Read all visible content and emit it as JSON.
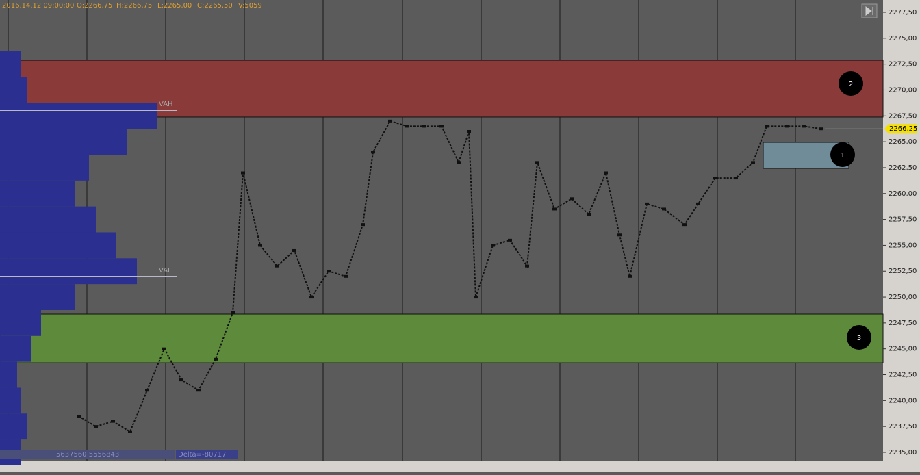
{
  "header": {
    "date": "2016.14.12 09:00:00",
    "open": "O:2266,75",
    "high": "H:2266,75",
    "low": "L:2265,00",
    "close": "C:2265,50",
    "volume": "V:5059"
  },
  "chart_data": {
    "type": "line",
    "ylim": [
      2234.14,
      2278.69
    ],
    "xlim": [
      0,
      129
    ],
    "yticks": [
      {
        "value": 2235,
        "label": "2235,00"
      },
      {
        "value": 2237.5,
        "label": "2237,50"
      },
      {
        "value": 2240,
        "label": "2240,00"
      },
      {
        "value": 2242.5,
        "label": "2242,50"
      },
      {
        "value": 2245,
        "label": "2245,00"
      },
      {
        "value": 2247.5,
        "label": "2247,50"
      },
      {
        "value": 2250,
        "label": "2250,00"
      },
      {
        "value": 2252.5,
        "label": "2252,50"
      },
      {
        "value": 2255,
        "label": "2255,00"
      },
      {
        "value": 2257.5,
        "label": "2257,50"
      },
      {
        "value": 2260,
        "label": "2260,00"
      },
      {
        "value": 2262.5,
        "label": "2262,50"
      },
      {
        "value": 2265,
        "label": "2265,00"
      },
      {
        "value": 2267.5,
        "label": "2267,50"
      },
      {
        "value": 2270,
        "label": "2270,00"
      },
      {
        "value": 2272.5,
        "label": "2272,50"
      },
      {
        "value": 2275,
        "label": "2275,00"
      },
      {
        "value": 2277.5,
        "label": "2277,50"
      }
    ],
    "x": [
      11.5,
      14,
      16.5,
      19,
      21.5,
      24,
      26.5,
      29,
      31.5,
      34,
      35.5,
      38,
      40.5,
      43,
      45.5,
      48,
      50.5,
      53,
      54.5,
      57,
      59.5,
      62,
      64.5,
      67,
      68.5,
      69.5,
      72,
      74.5,
      77,
      78.5,
      81,
      83.5,
      86,
      88.5,
      90.5,
      92,
      94.5,
      97,
      100,
      102,
      104.5,
      107.5,
      110,
      112,
      115,
      117.5,
      120
    ],
    "values": [
      2238.5,
      2237.5,
      2238,
      2237,
      2241,
      2245,
      2242,
      2241,
      2244,
      2248.5,
      2262,
      2255,
      2253,
      2254.5,
      2250,
      2252.5,
      2252,
      2257,
      2264,
      2267,
      2266.5,
      2266.5,
      2266.5,
      2263,
      2266,
      2250,
      2255,
      2255.5,
      2253,
      2263,
      2258.5,
      2259.5,
      2258,
      2262,
      2256,
      2252,
      2259,
      2258.5,
      2257,
      2259,
      2261.5,
      2261.5,
      2263,
      2266.5,
      2266.5,
      2266.5,
      2266.25
    ],
    "color": "#111111",
    "zones": [
      {
        "label": "2",
        "low": 2267.39,
        "high": 2272.87,
        "color": "#8b3a3a"
      },
      {
        "label": "3",
        "low": 2243.65,
        "high": 2248.35,
        "color": "#5e8a3c"
      },
      {
        "label": "1",
        "low": 2262.43,
        "high": 2264.94,
        "color": "#6f8c98"
      }
    ],
    "levels": [
      {
        "label": "VAH",
        "value": 2268.05
      },
      {
        "label": "VAL",
        "value": 2251.99
      }
    ],
    "last_price": {
      "value": 2266.25,
      "label": "2266,25"
    },
    "profile": {
      "prices": [
        2235,
        2237.5,
        2240,
        2242.5,
        2245,
        2247.5,
        2250,
        2252.5,
        2255,
        2257.5,
        2260,
        2262.5,
        2265,
        2267.5,
        2270,
        2272.5
      ],
      "volumes": [
        30,
        40,
        30,
        25,
        45,
        60,
        110,
        200,
        170,
        140,
        110,
        130,
        185,
        230,
        40,
        30
      ],
      "color": "#2b2f8f"
    },
    "footer": {
      "volumes": "5637560  5556843",
      "delta": "Delta=-80717"
    }
  }
}
